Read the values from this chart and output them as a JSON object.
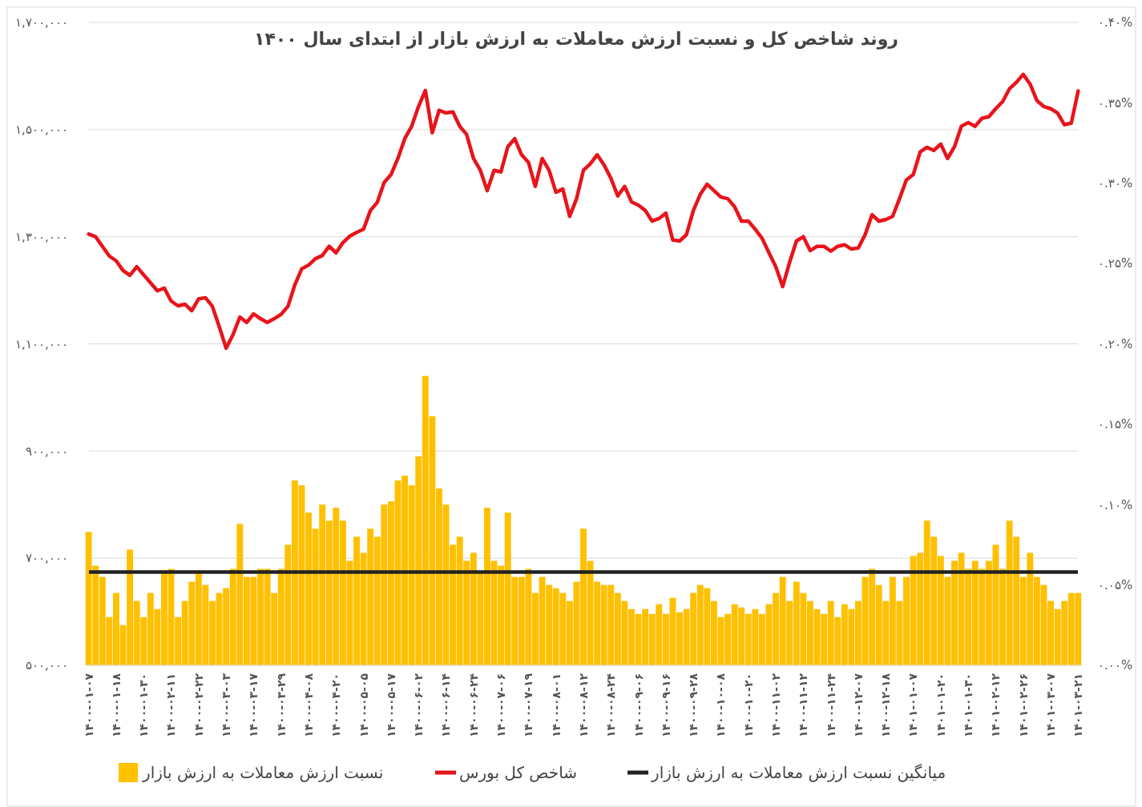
{
  "chart_data": {
    "type": "bar",
    "title": "روند شاخص کل و نسبت ارزش معاملات به ارزش بازار از ابتدای سال ۱۴۰۰",
    "categories": [
      "۱۴۰۰-۰۱-۰۷",
      null,
      null,
      null,
      "۱۴۰۰-۰۱-۱۸",
      null,
      null,
      null,
      "۱۴۰۰-۰۱-۳۰",
      null,
      null,
      null,
      "۱۴۰۰-۰۲-۱۱",
      null,
      null,
      null,
      "۱۴۰۰-۰۲-۲۲",
      null,
      null,
      null,
      "۱۴۰۰-۰۳-۰۳",
      null,
      null,
      null,
      "۱۴۰۰-۰۳-۱۷",
      null,
      null,
      null,
      "۱۴۰۰-۰۳-۲۹",
      null,
      null,
      null,
      "۱۴۰۰-۰۴-۰۸",
      null,
      null,
      null,
      "۱۴۰۰-۰۴-۲۰",
      null,
      null,
      null,
      "۱۴۰۰-۰۵-۰۵",
      null,
      null,
      null,
      "۱۴۰۰-۰۵-۱۷",
      null,
      null,
      null,
      "۱۴۰۰-۰۶-۰۲",
      null,
      null,
      null,
      "۱۴۰۰-۰۶-۱۴",
      null,
      null,
      null,
      "۱۴۰۰-۰۶-۲۴",
      null,
      null,
      null,
      "۱۴۰۰-۰۷-۰۶",
      null,
      null,
      null,
      "۱۴۰۰-۰۷-۱۹",
      null,
      null,
      null,
      "۱۴۰۰-۰۸-۰۱",
      null,
      null,
      null,
      "۱۴۰۰-۰۸-۱۲",
      null,
      null,
      null,
      "۱۴۰۰-۰۸-۲۴",
      null,
      null,
      null,
      "۱۴۰۰-۰۹-۰۶",
      null,
      null,
      null,
      "۱۴۰۰-۰۹-۱۶",
      null,
      null,
      null,
      "۱۴۰۰-۰۹-۲۸",
      null,
      null,
      null,
      "۱۴۰۰-۱۰-۰۸",
      null,
      null,
      null,
      "۱۴۰۰-۱۰-۲۰",
      null,
      null,
      null,
      "۱۴۰۰-۱۱-۰۲",
      null,
      null,
      null,
      "۱۴۰۰-۱۱-۱۲",
      null,
      null,
      null,
      "۱۴۰۰-۱۱-۲۴",
      null,
      null,
      null,
      "۱۴۰۰-۱۲-۰۷",
      null,
      null,
      null,
      "۱۴۰۰-۱۲-۱۸",
      null,
      null,
      null,
      "۱۴۰۱-۰۱-۰۷",
      null,
      null,
      null,
      "۱۴۰۱-۰۱-۲۰",
      null,
      null,
      null,
      "۱۴۰۱-۰۱-۳۰",
      null,
      null,
      null,
      "۱۴۰۱-۰۲-۱۲",
      null,
      null,
      null,
      "۱۴۰۱-۰۲-۲۶",
      null,
      null,
      null,
      "۱۴۰۱-۰۳-۰۷",
      null,
      null,
      null,
      "۱۴۰۱-۰۳-۲۱"
    ],
    "series": [
      {
        "name": "نسبت ارزش معاملات به ارزش بازار",
        "axis": "y2",
        "color": "#ffc000",
        "values": [
          0.083,
          0.062,
          0.055,
          0.03,
          0.045,
          0.025,
          0.072,
          0.04,
          0.03,
          0.045,
          0.035,
          0.058,
          0.06,
          0.03,
          0.04,
          0.052,
          0.058,
          0.05,
          0.04,
          0.045,
          0.048,
          0.06,
          0.088,
          0.055,
          0.055,
          0.06,
          0.06,
          0.045,
          0.06,
          0.075,
          0.115,
          0.112,
          0.095,
          0.085,
          0.1,
          0.09,
          0.098,
          0.09,
          0.065,
          0.08,
          0.07,
          0.085,
          0.08,
          0.1,
          0.102,
          0.115,
          0.118,
          0.112,
          0.13,
          0.18,
          0.155,
          0.11,
          0.1,
          0.075,
          0.08,
          0.065,
          0.07,
          0.058,
          0.098,
          0.065,
          0.062,
          0.095,
          0.055,
          0.055,
          0.06,
          0.045,
          0.055,
          0.05,
          0.048,
          0.045,
          0.04,
          0.052,
          0.085,
          0.065,
          0.052,
          0.05,
          0.05,
          0.045,
          0.04,
          0.035,
          0.032,
          0.035,
          0.032,
          0.038,
          0.032,
          0.042,
          0.033,
          0.035,
          0.045,
          0.05,
          0.048,
          0.04,
          0.03,
          0.032,
          0.038,
          0.036,
          0.032,
          0.035,
          0.032,
          0.038,
          0.045,
          0.055,
          0.04,
          0.052,
          0.045,
          0.04,
          0.035,
          0.032,
          0.04,
          0.03,
          0.038,
          0.035,
          0.04,
          0.055,
          0.06,
          0.05,
          0.04,
          0.055,
          0.04,
          0.055,
          0.068,
          0.07,
          0.09,
          0.08,
          0.068,
          0.055,
          0.065,
          0.07,
          0.06,
          0.065,
          0.06,
          0.065,
          0.075,
          0.06,
          0.09,
          0.08,
          0.055,
          0.07,
          0.055,
          0.05,
          0.04,
          0.035,
          0.04,
          0.045,
          0.045
        ]
      },
      {
        "name": "شاخص کل بورس",
        "type": "line",
        "color": "#e8141b",
        "values": [
          1305000,
          1300000,
          1282000,
          1264000,
          1255000,
          1237000,
          1228000,
          1244000,
          1229000,
          1214000,
          1199000,
          1204000,
          1180000,
          1171000,
          1174000,
          1162000,
          1184000,
          1186000,
          1170000,
          1132000,
          1092000,
          1117000,
          1150000,
          1140000,
          1156000,
          1147000,
          1140000,
          1147000,
          1155000,
          1170000,
          1210000,
          1240000,
          1247000,
          1259000,
          1265000,
          1282000,
          1270000,
          1289000,
          1301000,
          1308000,
          1314000,
          1349000,
          1364000,
          1401000,
          1416000,
          1446000,
          1483000,
          1506000,
          1543000,
          1573000,
          1494000,
          1536000,
          1531000,
          1533000,
          1506000,
          1491000,
          1446000,
          1424000,
          1386000,
          1424000,
          1421000,
          1468000,
          1483000,
          1453000,
          1439000,
          1394000,
          1446000,
          1424000,
          1383000,
          1389000,
          1338000,
          1371000,
          1424000,
          1436000,
          1453000,
          1434000,
          1409000,
          1376000,
          1394000,
          1365000,
          1359000,
          1349000,
          1329000,
          1334000,
          1344000,
          1294000,
          1292000,
          1304000,
          1349000,
          1379000,
          1398000,
          1386000,
          1374000,
          1371000,
          1356000,
          1329000,
          1329000,
          1314000,
          1297000,
          1270000,
          1244000,
          1207000,
          1252000,
          1292000,
          1300000,
          1274000,
          1282000,
          1282000,
          1273000,
          1282000,
          1285000,
          1277000,
          1279000,
          1304000,
          1341000,
          1329000,
          1332000,
          1338000,
          1371000,
          1406000,
          1416000,
          1458000,
          1467000,
          1461000,
          1473000,
          1446000,
          1468000,
          1506000,
          1513000,
          1506000,
          1521000,
          1524000,
          1539000,
          1552000,
          1576000,
          1588000,
          1603000,
          1585000,
          1554000,
          1543000,
          1539000,
          1531000,
          1509000,
          1512000,
          1572000
        ]
      }
    ],
    "ref_lines": [
      {
        "axis": "y2",
        "value": 0.058,
        "label": "میانگین نسبت ارزش معاملات به ارزش بازار",
        "color": "#222222"
      }
    ],
    "ylim": [
      500000,
      1700000
    ],
    "yticks": [
      {
        "value": 500000,
        "label": "۵۰۰,۰۰۰"
      },
      {
        "value": 700000,
        "label": "۷۰۰,۰۰۰"
      },
      {
        "value": 900000,
        "label": "۹۰۰,۰۰۰"
      },
      {
        "value": 1100000,
        "label": "۱,۱۰۰,۰۰۰"
      },
      {
        "value": 1300000,
        "label": "۱,۳۰۰,۰۰۰"
      },
      {
        "value": 1500000,
        "label": "۱,۵۰۰,۰۰۰"
      },
      {
        "value": 1700000,
        "label": "۱,۷۰۰,۰۰۰"
      }
    ],
    "y2lim": [
      0,
      0.4
    ],
    "y2ticks": [
      {
        "value": 0,
        "label": "۰.۰۰%"
      },
      {
        "value": 0.05,
        "label": "۰.۰۵%"
      },
      {
        "value": 0.1,
        "label": "۰.۱۰%"
      },
      {
        "value": 0.15,
        "label": "۰.۱۵%"
      },
      {
        "value": 0.2,
        "label": "۰.۲۰%"
      },
      {
        "value": 0.25,
        "label": "۰.۲۵%"
      },
      {
        "value": 0.3,
        "label": "۰.۳۰%"
      },
      {
        "value": 0.35,
        "label": "۰.۳۵%"
      },
      {
        "value": 0.4,
        "label": "۰.۴۰%"
      }
    ],
    "grid": "y",
    "legend": "bottom"
  }
}
